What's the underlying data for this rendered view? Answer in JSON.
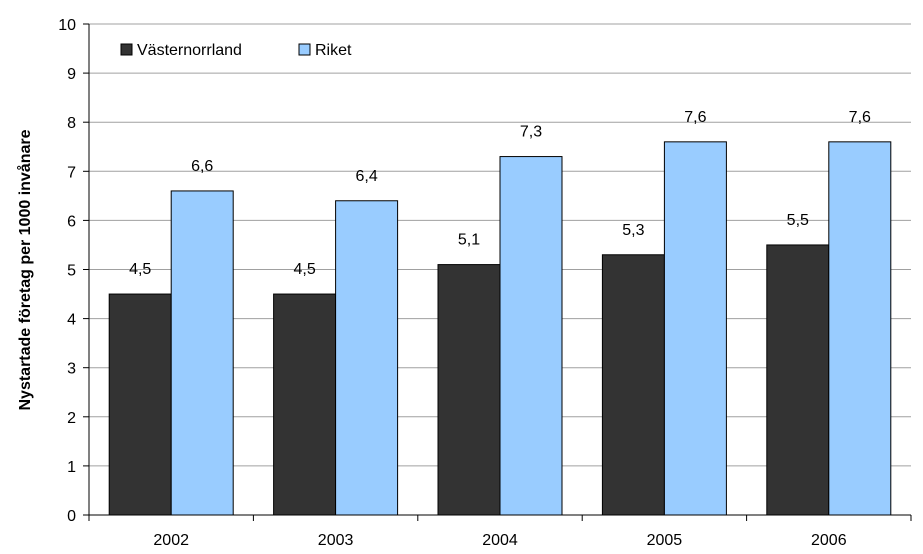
{
  "chart_data": {
    "type": "bar",
    "categories": [
      "2002",
      "2003",
      "2004",
      "2005",
      "2006"
    ],
    "series": [
      {
        "name": "Västernorrland",
        "values": [
          4.5,
          4.5,
          5.1,
          5.3,
          5.5
        ],
        "labels": [
          "4,5",
          "4,5",
          "5,1",
          "5,3",
          "5,5"
        ],
        "color": "#333333"
      },
      {
        "name": "Riket",
        "values": [
          6.6,
          6.4,
          7.3,
          7.6,
          7.6
        ],
        "labels": [
          "6,6",
          "6,4",
          "7,3",
          "7,6",
          "7,6"
        ],
        "color": "#99ccff"
      }
    ],
    "ylabel": "Nystartade företag per 1000 invånare",
    "ylim": [
      0,
      10
    ],
    "yticks": [
      "0",
      "1",
      "2",
      "3",
      "4",
      "5",
      "6",
      "7",
      "8",
      "9",
      "10"
    ],
    "grid": true,
    "legend_position": "top-left"
  }
}
